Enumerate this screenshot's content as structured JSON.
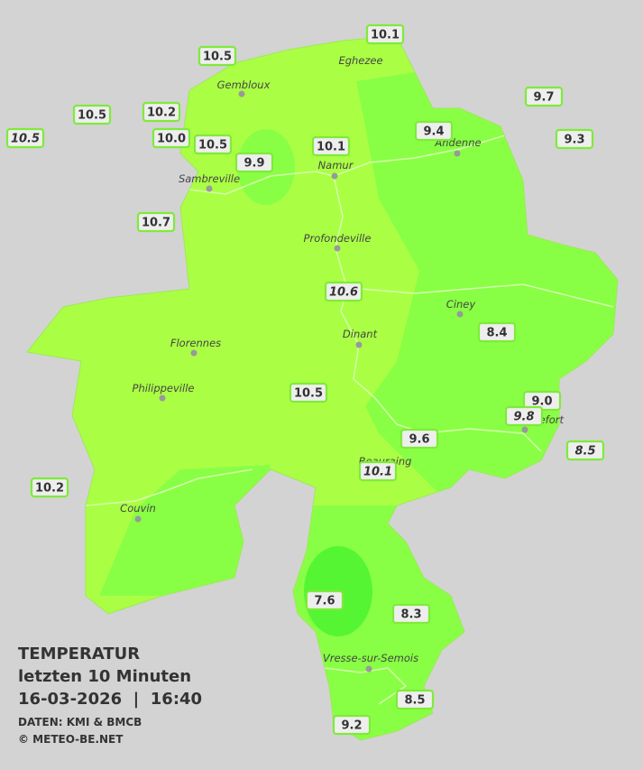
{
  "title": {
    "line1": "TEMPERATUR",
    "line2": "letzten 10 Minuten",
    "line3": "16-03-2026  |  16:40",
    "source": "DATEN: KMI & BMCB",
    "copyright": "© METEO-BE.NET"
  },
  "cities": [
    {
      "name": "Eghezee"
    },
    {
      "name": "Gembloux"
    },
    {
      "name": "Andenne"
    },
    {
      "name": "Namur"
    },
    {
      "name": "Sambreville"
    },
    {
      "name": "Profondeville"
    },
    {
      "name": "Ciney"
    },
    {
      "name": "Dinant"
    },
    {
      "name": "Florennes"
    },
    {
      "name": "Philippeville"
    },
    {
      "name": "Rochefort"
    },
    {
      "name": "Beauraing"
    },
    {
      "name": "Couvin"
    },
    {
      "name": "Vresse-sur-Semois"
    }
  ],
  "stations": [
    {
      "label": "10.1"
    },
    {
      "label": "10.5"
    },
    {
      "label": "10.5"
    },
    {
      "label": "10.2"
    },
    {
      "label": "10.5"
    },
    {
      "label": "10.0"
    },
    {
      "label": "10.5"
    },
    {
      "label": "9.9"
    },
    {
      "label": "10.1"
    },
    {
      "label": "9.4"
    },
    {
      "label": "9.7"
    },
    {
      "label": "9.3"
    },
    {
      "label": "10.7"
    },
    {
      "label": "10.6"
    },
    {
      "label": "8.4"
    },
    {
      "label": "10.5"
    },
    {
      "label": "9.0"
    },
    {
      "label": "9.8"
    },
    {
      "label": "8.5"
    },
    {
      "label": "9.6"
    },
    {
      "label": "10.1"
    },
    {
      "label": "10.2"
    },
    {
      "label": "7.6"
    },
    {
      "label": "8.3"
    },
    {
      "label": "8.5"
    },
    {
      "label": "9.2"
    }
  ]
}
